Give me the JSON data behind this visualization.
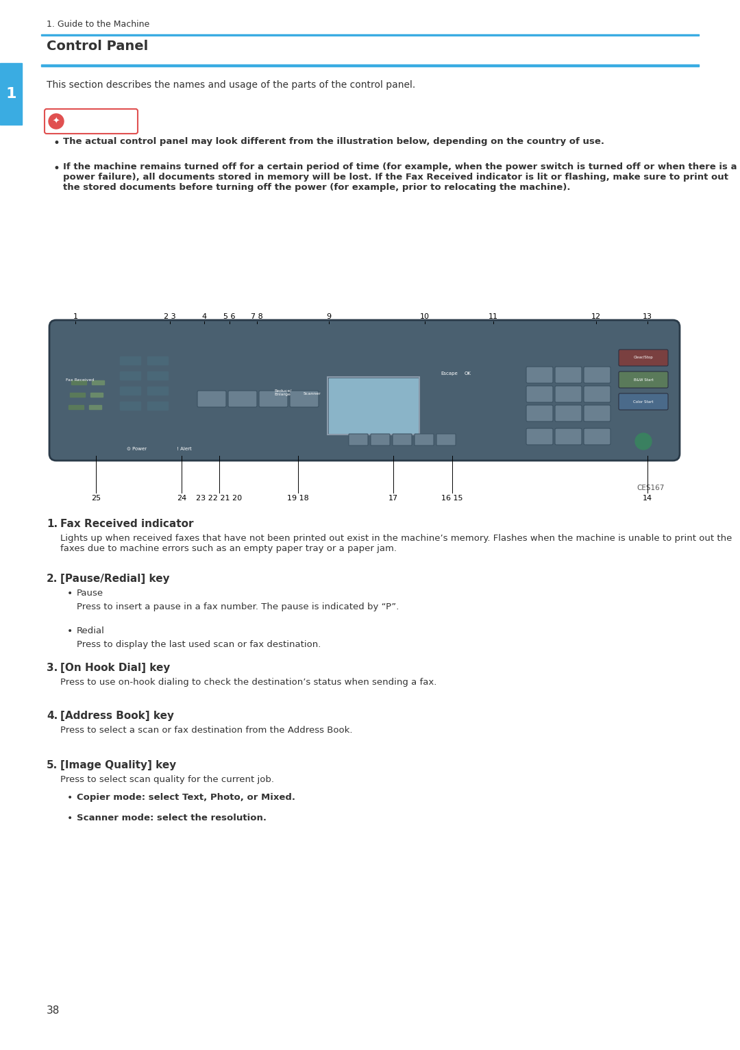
{
  "page_number": "38",
  "breadcrumb": "1. Guide to the Machine",
  "section_title": "Control Panel",
  "intro_text": "This section describes the names and usage of the parts of the control panel.",
  "important_label": "Important",
  "bullet1": "The actual control panel may look different from the illustration below, depending on the country of use.",
  "bullet2": "If the machine remains turned off for a certain period of time (for example, when the power switch is turned off or when there is a power failure), all documents stored in memory will be lost. If the Fax Received indicator is lit or flashing, make sure to print out the stored documents before turning off the power (for example, prior to relocating the machine).",
  "image_caption": "CES167",
  "top_labels": [
    "1",
    "2 3",
    "4",
    "5 6",
    "7 8",
    "",
    "9",
    "",
    "10",
    "",
    "11",
    "",
    "12",
    "13"
  ],
  "bottom_labels": [
    "25",
    "24",
    "23 22 21 20",
    "19 18",
    "17",
    "16 15",
    "14"
  ],
  "items": [
    {
      "num": "1.",
      "title": "Fax Received indicator",
      "body": "Lights up when received faxes that have not been printed out exist in the machine’s memory. Flashes when the machine is unable to print out the faxes due to machine errors such as an empty paper tray or a paper jam."
    },
    {
      "num": "2.",
      "title": "[Pause/Redial] key",
      "subitems": [
        {
          "label": "Pause",
          "desc": "Press to insert a pause in a fax number. The pause is indicated by “P”."
        },
        {
          "label": "Redial",
          "desc": "Press to display the last used scan or fax destination."
        }
      ]
    },
    {
      "num": "3.",
      "title": "[On Hook Dial] key",
      "body": "Press to use on-hook dialing to check the destination’s status when sending a fax."
    },
    {
      "num": "4.",
      "title": "[Address Book] key",
      "body": "Press to select a scan or fax destination from the Address Book."
    },
    {
      "num": "5.",
      "title": "[Image Quality] key",
      "body": "Press to select scan quality for the current job.",
      "subitems": [
        {
          "label": "Copier mode: select Text, Photo, or Mixed.",
          "desc": null
        },
        {
          "label": "Scanner mode: select the resolution.",
          "desc": null
        }
      ]
    }
  ],
  "colors": {
    "blue_bar": "#3aace2",
    "dark_blue_bar": "#2980b9",
    "panel_bg": "#4a6070",
    "text_dark": "#333333",
    "text_black": "#1a1a1a",
    "important_bg": "#ffffff",
    "important_border": "#e05050",
    "important_star": "#e05050",
    "line_color": "#3aace2",
    "tab_blue": "#3aace2",
    "screen_color": "#8ab4c8",
    "key_color": "#6a8090",
    "key_highlight": "#7a9aaa",
    "label_line_color": "#1a1a1a"
  }
}
